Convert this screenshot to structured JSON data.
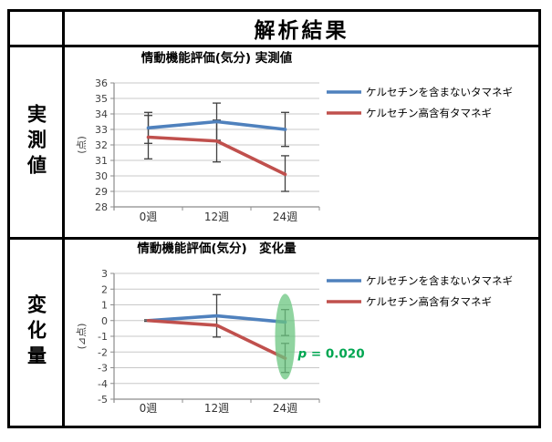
{
  "header": {
    "title": "解析結果"
  },
  "rows": [
    {
      "label": "実測値"
    },
    {
      "label": "変化量"
    }
  ],
  "colors": {
    "series_blue": "#4F81BD",
    "series_red": "#C0504D",
    "error_bar": "#404040",
    "gridline": "#C8C8C8",
    "axis": "#8C8C8C",
    "tick_text": "#404040",
    "highlight_green": "#6BC680",
    "p_value_green": "#00A651"
  },
  "chart_data": [
    {
      "type": "line",
      "title": "情動機能評価(気分) 実測値",
      "xlabel": "",
      "ylabel": "(点)",
      "categories": [
        "0週",
        "12週",
        "24週"
      ],
      "ylim": [
        28,
        36
      ],
      "ytick_step": 1,
      "grid": true,
      "legend_position": "right",
      "series": [
        {
          "name": "ケルセチンを含まないタマネギ",
          "color_key": "series_blue",
          "values": [
            33.1,
            33.5,
            33.0
          ],
          "error_low": [
            32.1,
            32.3,
            31.9
          ],
          "error_high": [
            34.1,
            34.7,
            34.1
          ]
        },
        {
          "name": "ケルセチン高含有タマネギ",
          "color_key": "series_red",
          "values": [
            32.5,
            32.25,
            30.1
          ],
          "error_low": [
            31.1,
            30.9,
            29.0
          ],
          "error_high": [
            33.9,
            33.6,
            31.3
          ]
        }
      ]
    },
    {
      "type": "line",
      "title": "情動機能評価(気分)　変化量",
      "xlabel": "",
      "ylabel": "(⊿点)",
      "categories": [
        "0週",
        "12週",
        "24週"
      ],
      "ylim": [
        -5,
        3
      ],
      "ytick_step": 1,
      "grid": true,
      "legend_position": "right",
      "series": [
        {
          "name": "ケルセチンを含まないタマネギ",
          "color_key": "series_blue",
          "values": [
            0,
            0.3,
            -0.1
          ],
          "error_low": [
            -0.05,
            -1.05,
            -0.95
          ],
          "error_high": [
            0.05,
            1.65,
            0.7
          ]
        },
        {
          "name": "ケルセチン高含有タマネギ",
          "color_key": "series_red",
          "values": [
            0,
            -0.3,
            -2.4
          ],
          "error_low": [
            null,
            null,
            -3.3
          ],
          "error_high": [
            null,
            null,
            -1.45
          ]
        }
      ],
      "highlight": {
        "category_index": 2,
        "y_top": 1.7,
        "y_bottom": -3.75
      },
      "annotation": {
        "variable": "p",
        "rest": " = 0.020",
        "value": "p = 0.020",
        "anchor_category_index": 2,
        "anchor_y": -2.35
      }
    }
  ]
}
